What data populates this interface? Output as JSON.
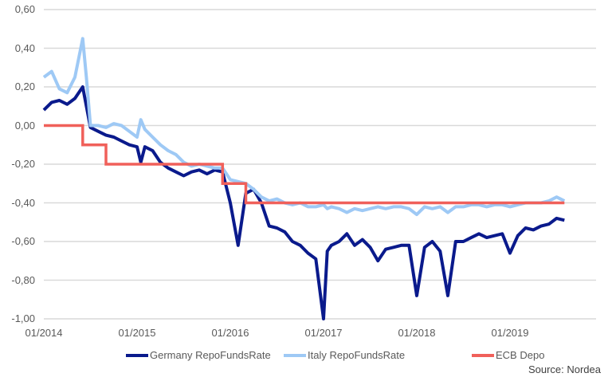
{
  "chart_data": {
    "type": "line",
    "title": "",
    "xlabel": "",
    "ylabel": "",
    "ylim": [
      -1.0,
      0.6
    ],
    "yticks": [
      "0,60",
      "0,40",
      "0,20",
      "0,00",
      "-0,20",
      "-0,40",
      "-0,60",
      "-0,80",
      "-1,00"
    ],
    "ytick_values": [
      0.6,
      0.4,
      0.2,
      0.0,
      -0.2,
      -0.4,
      -0.6,
      -0.8,
      -1.0
    ],
    "xticks": [
      "01/2014",
      "01/2015",
      "01/2016",
      "01/2017",
      "01/2018",
      "01/2019"
    ],
    "grid": true,
    "legend_position": "bottom",
    "source": "Source: Nordea",
    "series": [
      {
        "name": "Germany RepoFundsRate",
        "color": "#0a1a8c",
        "points": [
          [
            "2014-01",
            0.08
          ],
          [
            "2014-02",
            0.12
          ],
          [
            "2014-03",
            0.13
          ],
          [
            "2014-04",
            0.11
          ],
          [
            "2014-05",
            0.14
          ],
          [
            "2014-06",
            0.2
          ],
          [
            "2014-06b",
            0.1
          ],
          [
            "2014-07",
            -0.01
          ],
          [
            "2014-08",
            -0.03
          ],
          [
            "2014-09",
            -0.05
          ],
          [
            "2014-10",
            -0.06
          ],
          [
            "2014-11",
            -0.08
          ],
          [
            "2014-12",
            -0.1
          ],
          [
            "2015-01",
            -0.11
          ],
          [
            "2015-01b",
            -0.19
          ],
          [
            "2015-02",
            -0.11
          ],
          [
            "2015-03",
            -0.13
          ],
          [
            "2015-04",
            -0.19
          ],
          [
            "2015-05",
            -0.22
          ],
          [
            "2015-06",
            -0.24
          ],
          [
            "2015-07",
            -0.26
          ],
          [
            "2015-08",
            -0.24
          ],
          [
            "2015-09",
            -0.23
          ],
          [
            "2015-10",
            -0.25
          ],
          [
            "2015-11",
            -0.23
          ],
          [
            "2015-12",
            -0.24
          ],
          [
            "2016-01",
            -0.4
          ],
          [
            "2016-02",
            -0.62
          ],
          [
            "2016-03",
            -0.35
          ],
          [
            "2016-04",
            -0.33
          ],
          [
            "2016-05",
            -0.4
          ],
          [
            "2016-06",
            -0.52
          ],
          [
            "2016-07",
            -0.53
          ],
          [
            "2016-08",
            -0.55
          ],
          [
            "2016-09",
            -0.6
          ],
          [
            "2016-10",
            -0.62
          ],
          [
            "2016-11",
            -0.66
          ],
          [
            "2016-12",
            -0.69
          ],
          [
            "2017-01",
            -1.0
          ],
          [
            "2017-01b",
            -0.65
          ],
          [
            "2017-02",
            -0.62
          ],
          [
            "2017-03",
            -0.6
          ],
          [
            "2017-04",
            -0.56
          ],
          [
            "2017-05",
            -0.62
          ],
          [
            "2017-06",
            -0.59
          ],
          [
            "2017-07",
            -0.63
          ],
          [
            "2017-08",
            -0.7
          ],
          [
            "2017-09",
            -0.64
          ],
          [
            "2017-10",
            -0.63
          ],
          [
            "2017-11",
            -0.62
          ],
          [
            "2017-12",
            -0.62
          ],
          [
            "2018-01",
            -0.88
          ],
          [
            "2018-02",
            -0.63
          ],
          [
            "2018-03",
            -0.6
          ],
          [
            "2018-04",
            -0.65
          ],
          [
            "2018-05",
            -0.88
          ],
          [
            "2018-06",
            -0.6
          ],
          [
            "2018-07",
            -0.6
          ],
          [
            "2018-08",
            -0.58
          ],
          [
            "2018-09",
            -0.56
          ],
          [
            "2018-10",
            -0.58
          ],
          [
            "2018-11",
            -0.57
          ],
          [
            "2018-12",
            -0.56
          ],
          [
            "2019-01",
            -0.66
          ],
          [
            "2019-02",
            -0.57
          ],
          [
            "2019-03",
            -0.53
          ],
          [
            "2019-04",
            -0.54
          ],
          [
            "2019-05",
            -0.52
          ],
          [
            "2019-06",
            -0.51
          ],
          [
            "2019-07",
            -0.48
          ],
          [
            "2019-08",
            -0.49
          ]
        ]
      },
      {
        "name": "Italy RepoFundsRate",
        "color": "#9ec9f5",
        "points": [
          [
            "2014-01",
            0.25
          ],
          [
            "2014-02",
            0.28
          ],
          [
            "2014-03",
            0.19
          ],
          [
            "2014-04",
            0.17
          ],
          [
            "2014-05",
            0.25
          ],
          [
            "2014-06",
            0.45
          ],
          [
            "2014-06b",
            0.25
          ],
          [
            "2014-07",
            0.0
          ],
          [
            "2014-08",
            0.0
          ],
          [
            "2014-09",
            -0.01
          ],
          [
            "2014-10",
            0.01
          ],
          [
            "2014-11",
            0.0
          ],
          [
            "2014-12",
            -0.03
          ],
          [
            "2015-01",
            -0.06
          ],
          [
            "2015-01b",
            0.03
          ],
          [
            "2015-02",
            -0.02
          ],
          [
            "2015-03",
            -0.06
          ],
          [
            "2015-04",
            -0.1
          ],
          [
            "2015-05",
            -0.13
          ],
          [
            "2015-06",
            -0.15
          ],
          [
            "2015-07",
            -0.19
          ],
          [
            "2015-08",
            -0.21
          ],
          [
            "2015-09",
            -0.2
          ],
          [
            "2015-10",
            -0.21
          ],
          [
            "2015-11",
            -0.22
          ],
          [
            "2015-12",
            -0.22
          ],
          [
            "2016-01",
            -0.28
          ],
          [
            "2016-02",
            -0.29
          ],
          [
            "2016-03",
            -0.3
          ],
          [
            "2016-04",
            -0.33
          ],
          [
            "2016-05",
            -0.37
          ],
          [
            "2016-06",
            -0.39
          ],
          [
            "2016-07",
            -0.38
          ],
          [
            "2016-08",
            -0.4
          ],
          [
            "2016-09",
            -0.41
          ],
          [
            "2016-10",
            -0.4
          ],
          [
            "2016-11",
            -0.42
          ],
          [
            "2016-12",
            -0.42
          ],
          [
            "2017-01",
            -0.41
          ],
          [
            "2017-01b",
            -0.43
          ],
          [
            "2017-02",
            -0.42
          ],
          [
            "2017-03",
            -0.43
          ],
          [
            "2017-04",
            -0.45
          ],
          [
            "2017-05",
            -0.43
          ],
          [
            "2017-06",
            -0.44
          ],
          [
            "2017-07",
            -0.43
          ],
          [
            "2017-08",
            -0.42
          ],
          [
            "2017-09",
            -0.43
          ],
          [
            "2017-10",
            -0.42
          ],
          [
            "2017-11",
            -0.42
          ],
          [
            "2017-12",
            -0.43
          ],
          [
            "2018-01",
            -0.46
          ],
          [
            "2018-02",
            -0.42
          ],
          [
            "2018-03",
            -0.43
          ],
          [
            "2018-04",
            -0.42
          ],
          [
            "2018-05",
            -0.45
          ],
          [
            "2018-06",
            -0.42
          ],
          [
            "2018-07",
            -0.42
          ],
          [
            "2018-08",
            -0.41
          ],
          [
            "2018-09",
            -0.41
          ],
          [
            "2018-10",
            -0.42
          ],
          [
            "2018-11",
            -0.41
          ],
          [
            "2018-12",
            -0.41
          ],
          [
            "2019-01",
            -0.42
          ],
          [
            "2019-02",
            -0.41
          ],
          [
            "2019-03",
            -0.4
          ],
          [
            "2019-04",
            -0.4
          ],
          [
            "2019-05",
            -0.4
          ],
          [
            "2019-06",
            -0.39
          ],
          [
            "2019-07",
            -0.37
          ],
          [
            "2019-08",
            -0.39
          ]
        ]
      },
      {
        "name": "ECB Depo",
        "color": "#f0605a",
        "points": [
          [
            "2014-01",
            0.0
          ],
          [
            "2014-06",
            0.0
          ],
          [
            "2014-06",
            -0.1
          ],
          [
            "2014-09",
            -0.1
          ],
          [
            "2014-09",
            -0.2
          ],
          [
            "2015-12",
            -0.2
          ],
          [
            "2015-12",
            -0.3
          ],
          [
            "2016-03",
            -0.3
          ],
          [
            "2016-03",
            -0.4
          ],
          [
            "2019-08",
            -0.4
          ]
        ]
      }
    ]
  },
  "legend": {
    "items": [
      {
        "label": "Germany RepoFundsRate",
        "color": "#0a1a8c"
      },
      {
        "label": "Italy RepoFundsRate",
        "color": "#9ec9f5"
      },
      {
        "label": "ECB Depo",
        "color": "#f0605a"
      }
    ]
  },
  "footer": {
    "source": "Source: Nordea"
  }
}
